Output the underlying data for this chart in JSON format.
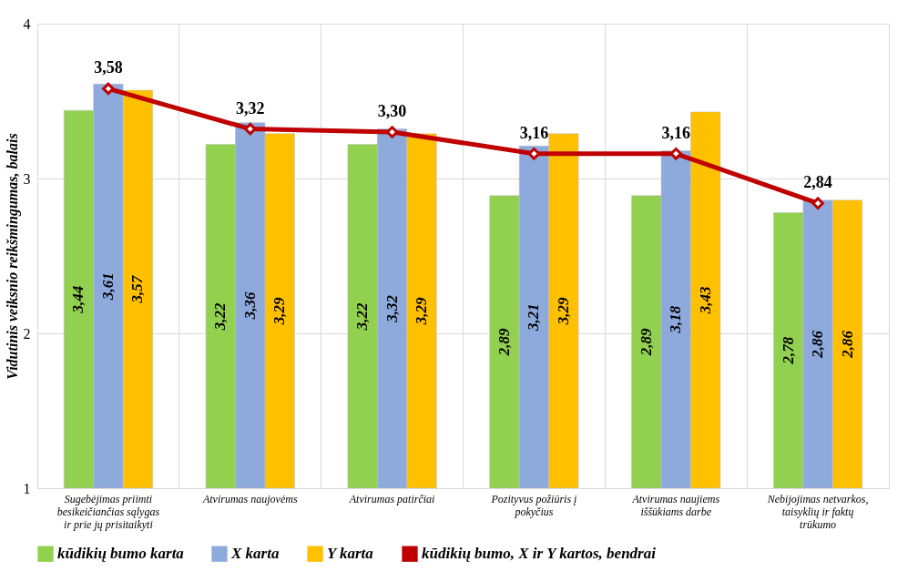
{
  "chart_data": {
    "type": "bar",
    "ylabel": "Vidutinis veiksnio reikšmingumas, balais",
    "categories": [
      "Sugebėjimas priimti besikeičiančias sąlygas ir prie jų prisitaikyti",
      "Atvirumas naujovėms",
      "Atvirumas patirčiai",
      "Pozityvus požiūris į pokyčius",
      "Atvirumas naujiems iššūkiams darbe",
      "Nebijojimas netvarkos, taisyklių ir faktų trūkumo"
    ],
    "series": [
      {
        "name": "kūdikių bumo karta",
        "color": "#92d050",
        "values": [
          3.44,
          3.22,
          3.22,
          2.89,
          2.89,
          2.78
        ],
        "value_labels": [
          "3,44",
          "3,22",
          "3,22",
          "2,89",
          "2,89",
          "2,78"
        ]
      },
      {
        "name": "X karta",
        "color": "#8eaadc",
        "values": [
          3.61,
          3.36,
          3.32,
          3.21,
          3.18,
          2.86
        ],
        "value_labels": [
          "3,61",
          "3,36",
          "3,32",
          "3,21",
          "3,18",
          "2,86"
        ]
      },
      {
        "name": "Y karta",
        "color": "#ffc000",
        "values": [
          3.57,
          3.29,
          3.29,
          3.29,
          3.43,
          2.86
        ],
        "value_labels": [
          "3,57",
          "3,29",
          "3,29",
          "3,29",
          "3,43",
          "2,86"
        ]
      },
      {
        "name": "kūdikių bumo, X ir Y kartos, bendrai",
        "type": "line",
        "color": "#c00000",
        "marker": "diamond",
        "values": [
          3.58,
          3.32,
          3.3,
          3.16,
          3.16,
          2.84
        ],
        "value_labels": [
          "3,58",
          "3,32",
          "3,30",
          "3,16",
          "3,16",
          "2,84"
        ]
      }
    ],
    "ylim": [
      1,
      4
    ],
    "yticks": [
      1,
      2,
      3,
      4
    ],
    "grid": true,
    "legend": "bottom"
  }
}
